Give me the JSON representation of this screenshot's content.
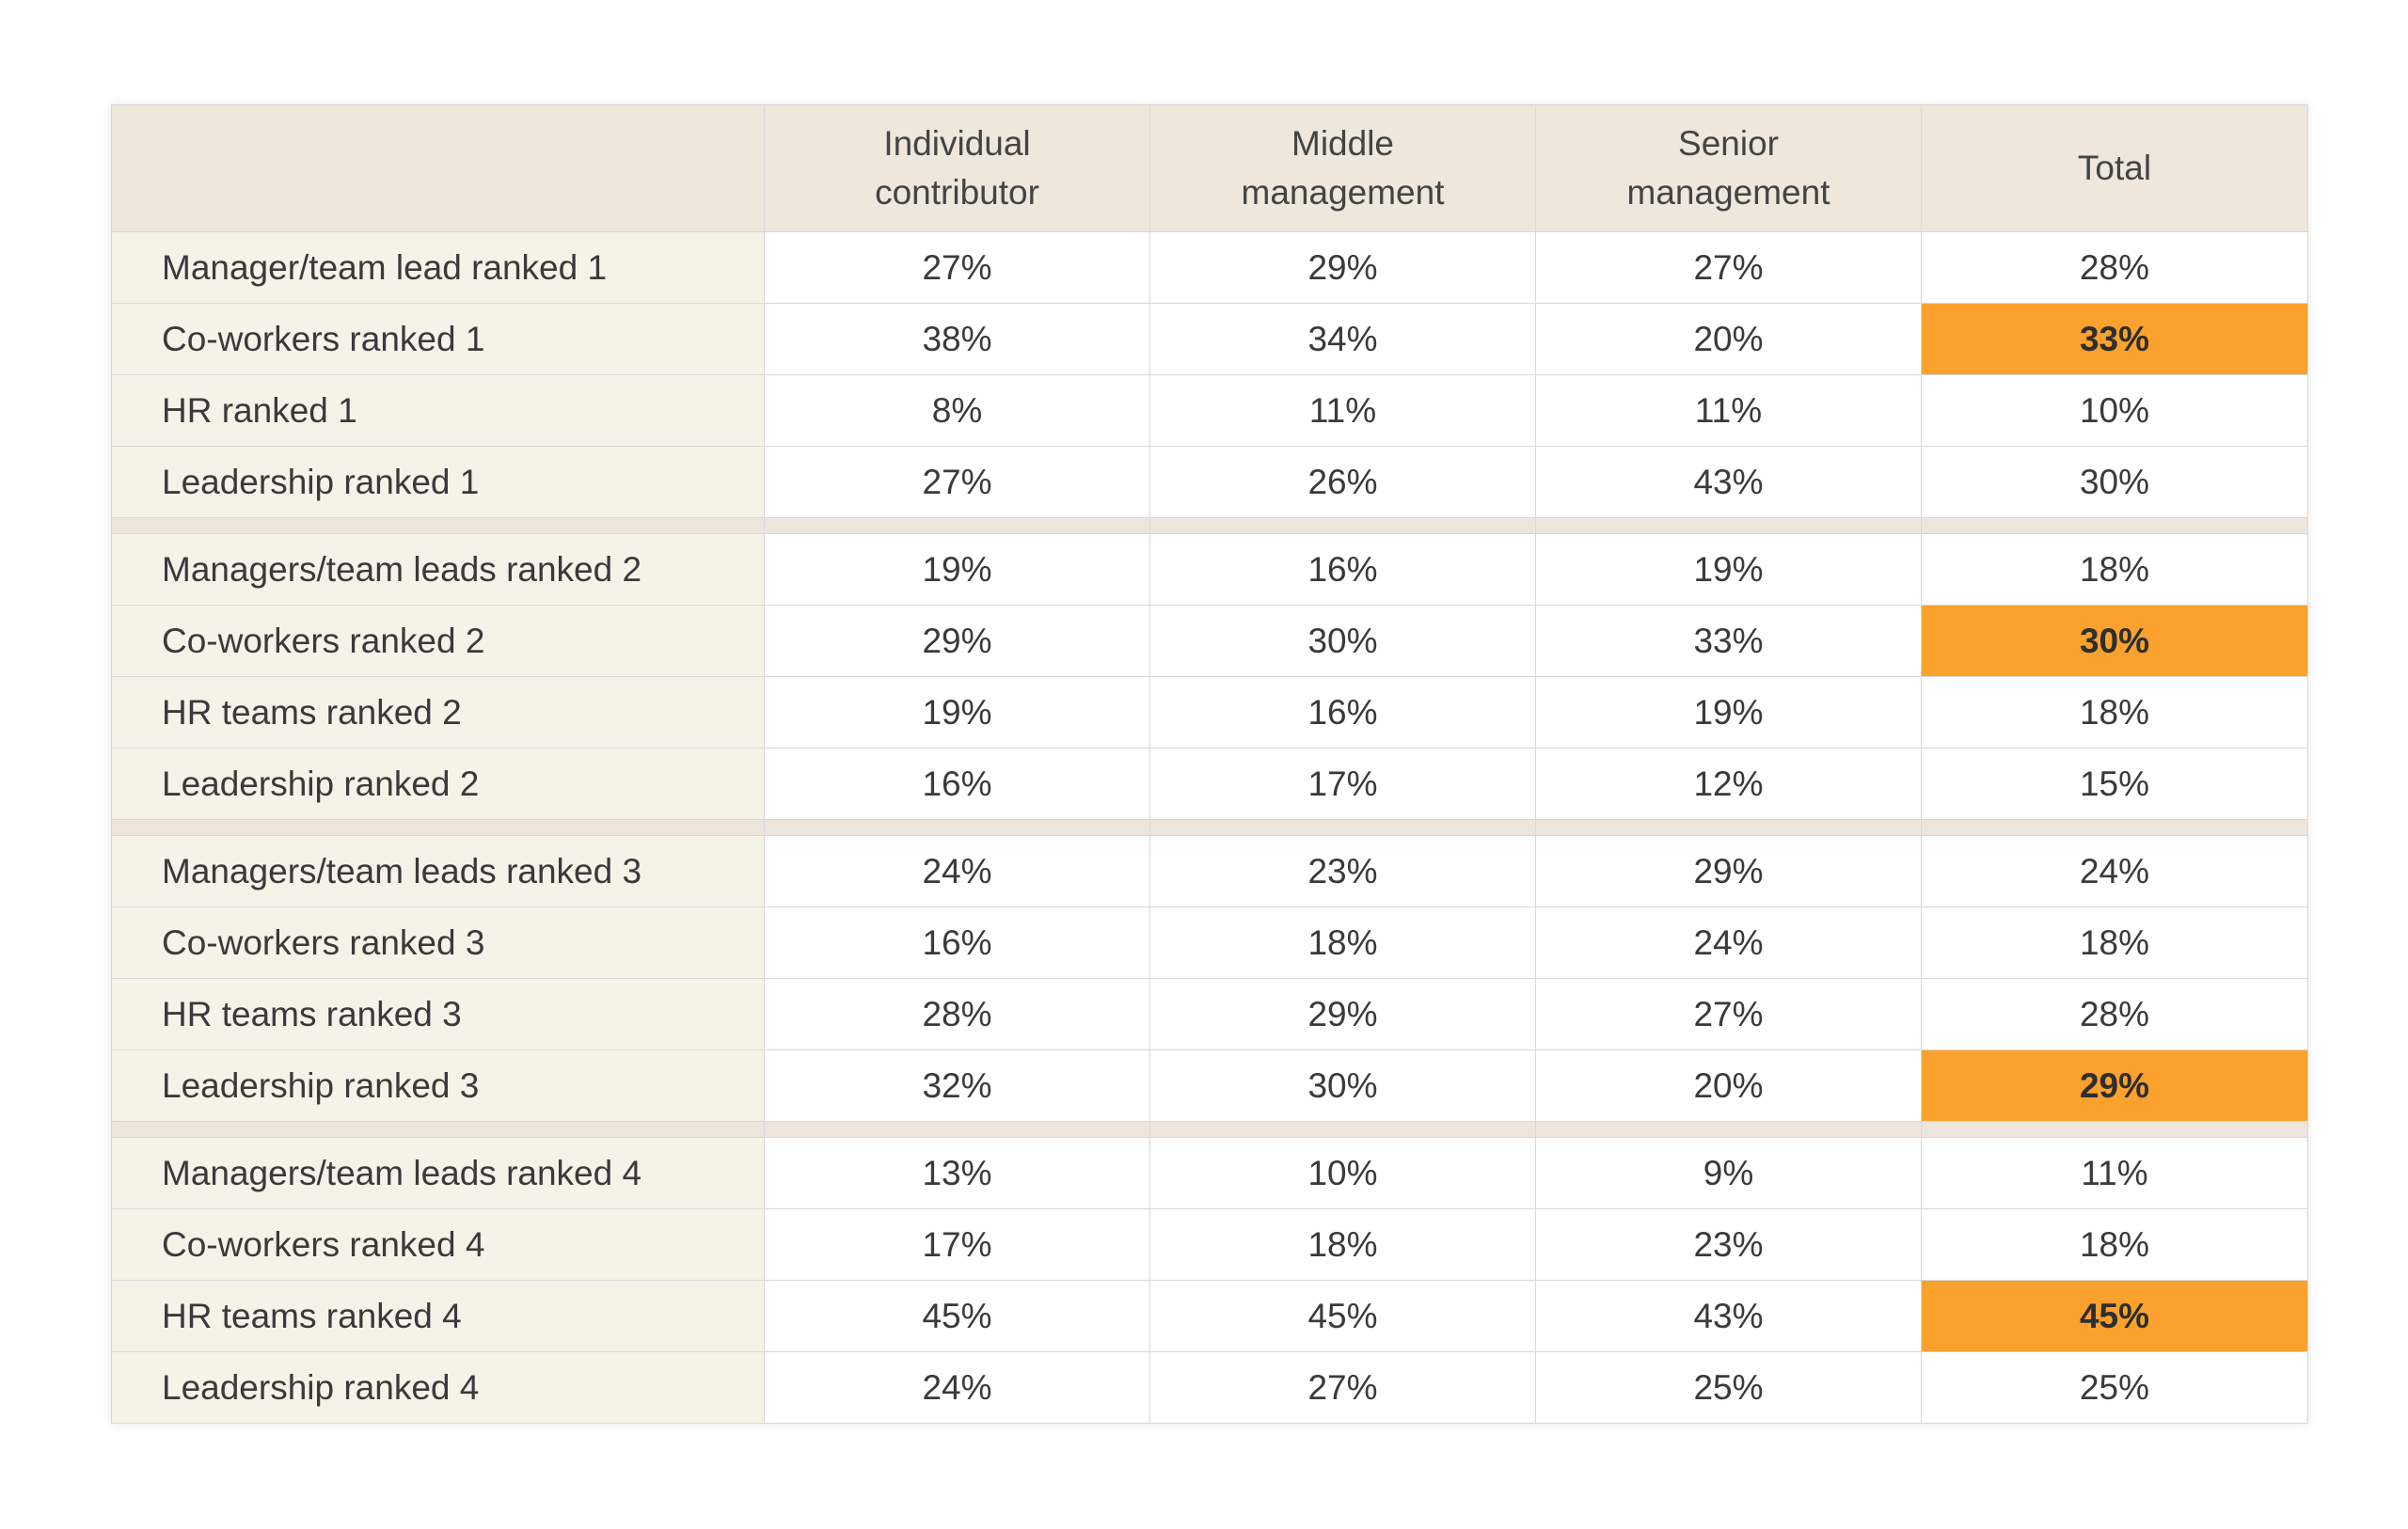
{
  "chart_data": {
    "type": "table",
    "highlight_color": "#fba12d",
    "header_bg": "#efe6dc",
    "label_bg": "#f5f2e8",
    "columns": [
      "",
      "Individual contributor",
      "Middle management",
      "Senior management",
      "Total"
    ],
    "header_lines": [
      [],
      [
        "Individual",
        "contributor"
      ],
      [
        "Middle",
        "management"
      ],
      [
        "Senior",
        "management"
      ],
      [
        "Total"
      ]
    ],
    "groups": [
      {
        "rows": [
          {
            "label": "Manager/team lead ranked 1",
            "values": [
              "27%",
              "29%",
              "27%",
              "28%"
            ],
            "highlight_total": false
          },
          {
            "label": "Co-workers ranked 1",
            "values": [
              "38%",
              "34%",
              "20%",
              "33%"
            ],
            "highlight_total": true
          },
          {
            "label": "HR ranked 1",
            "values": [
              "8%",
              "11%",
              "11%",
              "10%"
            ],
            "highlight_total": false
          },
          {
            "label": "Leadership ranked 1",
            "values": [
              "27%",
              "26%",
              "43%",
              "30%"
            ],
            "highlight_total": false
          }
        ]
      },
      {
        "rows": [
          {
            "label": "Managers/team leads ranked 2",
            "values": [
              "19%",
              "16%",
              "19%",
              "18%"
            ],
            "highlight_total": false
          },
          {
            "label": "Co-workers ranked 2",
            "values": [
              "29%",
              "30%",
              "33%",
              "30%"
            ],
            "highlight_total": true
          },
          {
            "label": "HR teams ranked 2",
            "values": [
              "19%",
              "16%",
              "19%",
              "18%"
            ],
            "highlight_total": false
          },
          {
            "label": "Leadership ranked 2",
            "values": [
              "16%",
              "17%",
              "12%",
              "15%"
            ],
            "highlight_total": false
          }
        ]
      },
      {
        "rows": [
          {
            "label": "Managers/team leads ranked 3",
            "values": [
              "24%",
              "23%",
              "29%",
              "24%"
            ],
            "highlight_total": false
          },
          {
            "label": "Co-workers ranked 3",
            "values": [
              "16%",
              "18%",
              "24%",
              "18%"
            ],
            "highlight_total": false
          },
          {
            "label": "HR teams ranked 3",
            "values": [
              "28%",
              "29%",
              "27%",
              "28%"
            ],
            "highlight_total": false
          },
          {
            "label": "Leadership ranked 3",
            "values": [
              "32%",
              "30%",
              "20%",
              "29%"
            ],
            "highlight_total": true
          }
        ]
      },
      {
        "rows": [
          {
            "label": "Managers/team leads ranked 4",
            "values": [
              "13%",
              "10%",
              "9%",
              "11%"
            ],
            "highlight_total": false
          },
          {
            "label": "Co-workers ranked 4",
            "values": [
              "17%",
              "18%",
              "23%",
              "18%"
            ],
            "highlight_total": false
          },
          {
            "label": "HR teams ranked 4",
            "values": [
              "45%",
              "45%",
              "43%",
              "45%"
            ],
            "highlight_total": true
          },
          {
            "label": "Leadership ranked 4",
            "values": [
              "24%",
              "27%",
              "25%",
              "25%"
            ],
            "highlight_total": false
          }
        ]
      }
    ]
  }
}
